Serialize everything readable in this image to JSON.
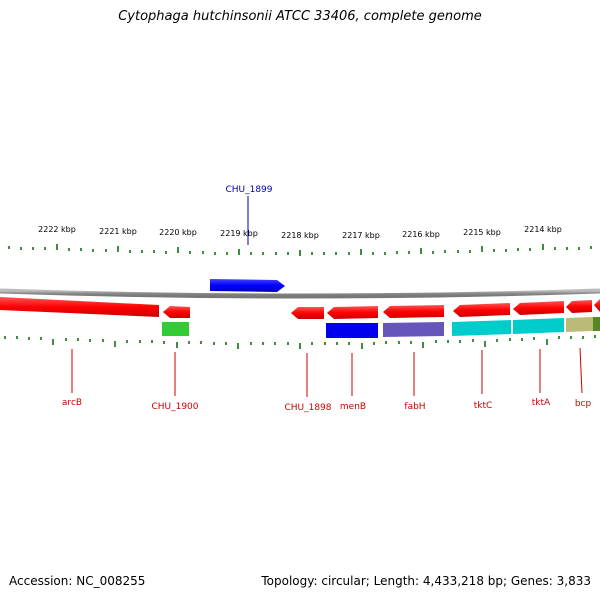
{
  "header": {
    "title": "Cytophaga hutchinsonii ATCC 33406, complete genome"
  },
  "footer": {
    "accession": "Accession: NC_008255",
    "summary": "Topology: circular; Length: 4,433,218 bp; Genes: 3,833"
  },
  "scale": {
    "ticks": [
      "2222 kbp",
      "2221 kbp",
      "2220 kbp",
      "2219 kbp",
      "2218 kbp",
      "2217 kbp",
      "2216 kbp",
      "2215 kbp",
      "2214 kbp"
    ]
  },
  "colors": {
    "forward_gene": "#0000ff",
    "reverse_gene": "#ff0000",
    "backbone": "#888888",
    "ticks": "#006600",
    "forward_label": "#0000aa",
    "reverse_label": "#cc0000",
    "category_green": "#33cc33",
    "category_blue": "#0000ee",
    "category_purple": "#6655bb",
    "category_cyan": "#00cccc",
    "category_khaki": "#bbbb77",
    "category_olive": "#558822"
  },
  "genes": {
    "forward": [
      {
        "label": "CHU_1899"
      }
    ],
    "reverse": [
      {
        "label": "arcB"
      },
      {
        "label": "CHU_1900"
      },
      {
        "label": "CHU_1898"
      },
      {
        "label": "menB"
      },
      {
        "label": "fabH"
      },
      {
        "label": "tktC"
      },
      {
        "label": "tktA"
      },
      {
        "label": "bcp"
      }
    ]
  }
}
